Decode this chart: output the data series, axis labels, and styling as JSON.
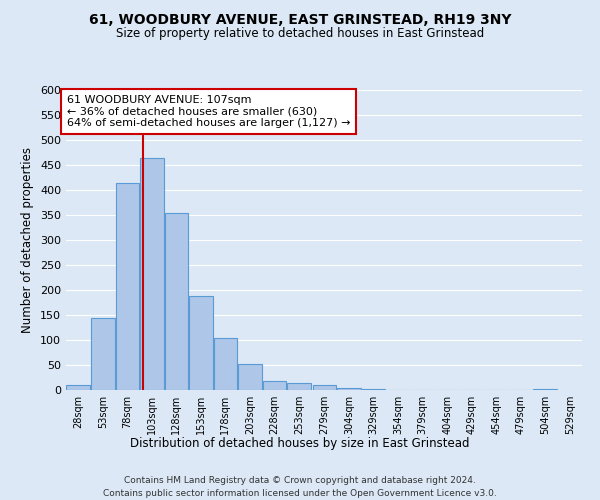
{
  "title": "61, WOODBURY AVENUE, EAST GRINSTEAD, RH19 3NY",
  "subtitle": "Size of property relative to detached houses in East Grinstead",
  "xlabel": "Distribution of detached houses by size in East Grinstead",
  "ylabel": "Number of detached properties",
  "bin_labels": [
    "28sqm",
    "53sqm",
    "78sqm",
    "103sqm",
    "128sqm",
    "153sqm",
    "178sqm",
    "203sqm",
    "228sqm",
    "253sqm",
    "279sqm",
    "304sqm",
    "329sqm",
    "354sqm",
    "379sqm",
    "404sqm",
    "429sqm",
    "454sqm",
    "479sqm",
    "504sqm",
    "529sqm"
  ],
  "bin_edges": [
    28,
    53,
    78,
    103,
    128,
    153,
    178,
    203,
    228,
    253,
    279,
    304,
    329,
    354,
    379,
    404,
    429,
    454,
    479,
    504,
    529
  ],
  "bar_heights": [
    10,
    145,
    415,
    465,
    355,
    188,
    105,
    53,
    18,
    15,
    10,
    5,
    2,
    1,
    0,
    0,
    0,
    0,
    0,
    3
  ],
  "bar_color": "#aec6e8",
  "bar_edge_color": "#5b9bd5",
  "property_line_x": 107,
  "annotation_title": "61 WOODBURY AVENUE: 107sqm",
  "annotation_line1": "← 36% of detached houses are smaller (630)",
  "annotation_line2": "64% of semi-detached houses are larger (1,127) →",
  "annotation_box_color": "#ffffff",
  "annotation_box_edge": "#cc0000",
  "property_line_color": "#cc0000",
  "ylim": [
    0,
    600
  ],
  "yticks": [
    0,
    50,
    100,
    150,
    200,
    250,
    300,
    350,
    400,
    450,
    500,
    550,
    600
  ],
  "footnote1": "Contains HM Land Registry data © Crown copyright and database right 2024.",
  "footnote2": "Contains public sector information licensed under the Open Government Licence v3.0.",
  "bg_color": "#dce8f5"
}
